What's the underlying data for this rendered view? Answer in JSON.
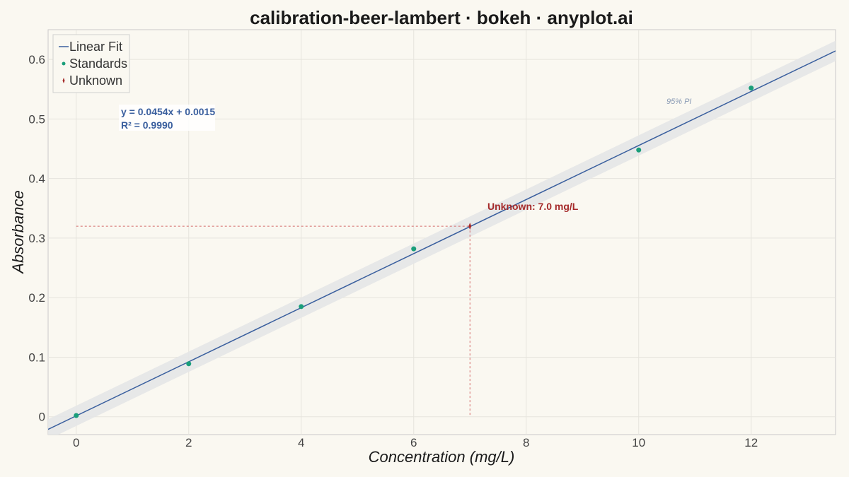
{
  "chart_data": {
    "type": "scatter",
    "title": "calibration-beer-lambert · bokeh · anyplot.ai",
    "xlabel": "Concentration (mg/L)",
    "ylabel": "Absorbance",
    "xlim": [
      -0.5,
      13.5
    ],
    "ylim": [
      -0.03,
      0.65
    ],
    "x_ticks": [
      0,
      2,
      4,
      6,
      8,
      10,
      12
    ],
    "y_ticks": [
      0,
      0.1,
      0.2,
      0.3,
      0.4,
      0.5,
      0.6
    ],
    "grid": true,
    "legend_position": "top-left",
    "series": [
      {
        "name": "Linear Fit",
        "kind": "line",
        "color": "#3A5F9E",
        "slope": 0.0454,
        "intercept": 0.0015
      },
      {
        "name": "Standards",
        "kind": "scatter",
        "color": "#1A9E7A",
        "x": [
          0,
          2,
          4,
          6,
          10,
          12
        ],
        "y": [
          0.002,
          0.089,
          0.185,
          0.282,
          0.448,
          0.552
        ]
      },
      {
        "name": "Unknown",
        "kind": "scatter",
        "color": "#A52A2A",
        "x": [
          7.0
        ],
        "y": [
          0.32
        ]
      }
    ],
    "prediction_interval": {
      "label": "95% PI",
      "half_width": 0.017,
      "color": "#E4E6E7"
    },
    "annotations": {
      "equation": "y = 0.0454x + 0.0015",
      "r_squared": "R² = 0.9990",
      "unknown_label": "Unknown: 7.0 mg/L"
    }
  }
}
